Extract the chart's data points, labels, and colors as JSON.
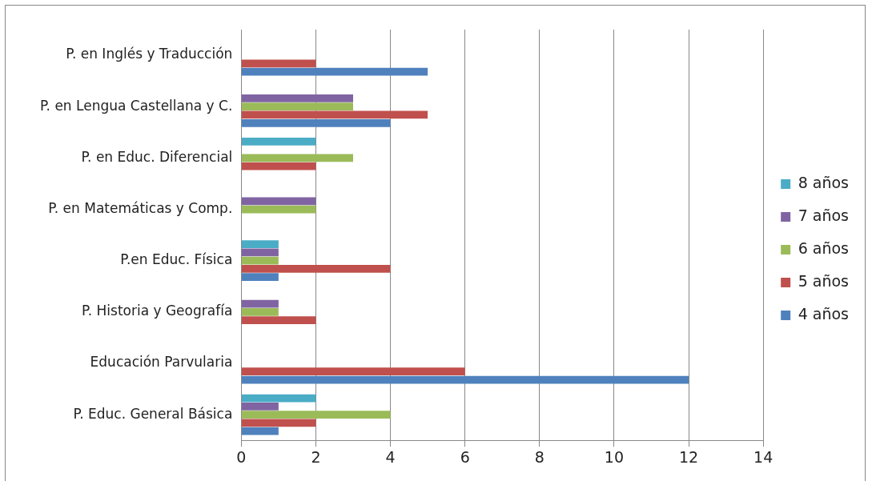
{
  "chart_data": {
    "type": "bar",
    "orientation": "horizontal",
    "categories": [
      "P. en Inglés y Traducción",
      "P. en Lengua Castellana y C.",
      "P. en Educ. Diferencial",
      "P. en Matemáticas y Comp.",
      "P.en Educ. Física",
      "P. Historia y Geografía",
      "Educación Parvularia",
      "P. Educ. General Básica"
    ],
    "series": [
      {
        "name": "4 años",
        "color": "#4f81bd",
        "values": [
          5,
          4,
          null,
          null,
          1,
          null,
          12,
          1
        ]
      },
      {
        "name": "5 años",
        "color": "#c0504d",
        "values": [
          2,
          5,
          2,
          null,
          4,
          2,
          6,
          2
        ]
      },
      {
        "name": "6 años",
        "color": "#9bbb59",
        "values": [
          null,
          3,
          3,
          2,
          1,
          1,
          null,
          4
        ]
      },
      {
        "name": "7 años",
        "color": "#8064a2",
        "values": [
          null,
          3,
          null,
          2,
          1,
          1,
          null,
          1
        ]
      },
      {
        "name": "8 años",
        "color": "#4bacc6",
        "values": [
          null,
          null,
          2,
          null,
          1,
          null,
          null,
          2
        ]
      }
    ],
    "xlim": [
      0,
      14
    ],
    "xticks": [
      0,
      2,
      4,
      6,
      8,
      10,
      12,
      14
    ],
    "grid": "x",
    "legend": "right"
  }
}
